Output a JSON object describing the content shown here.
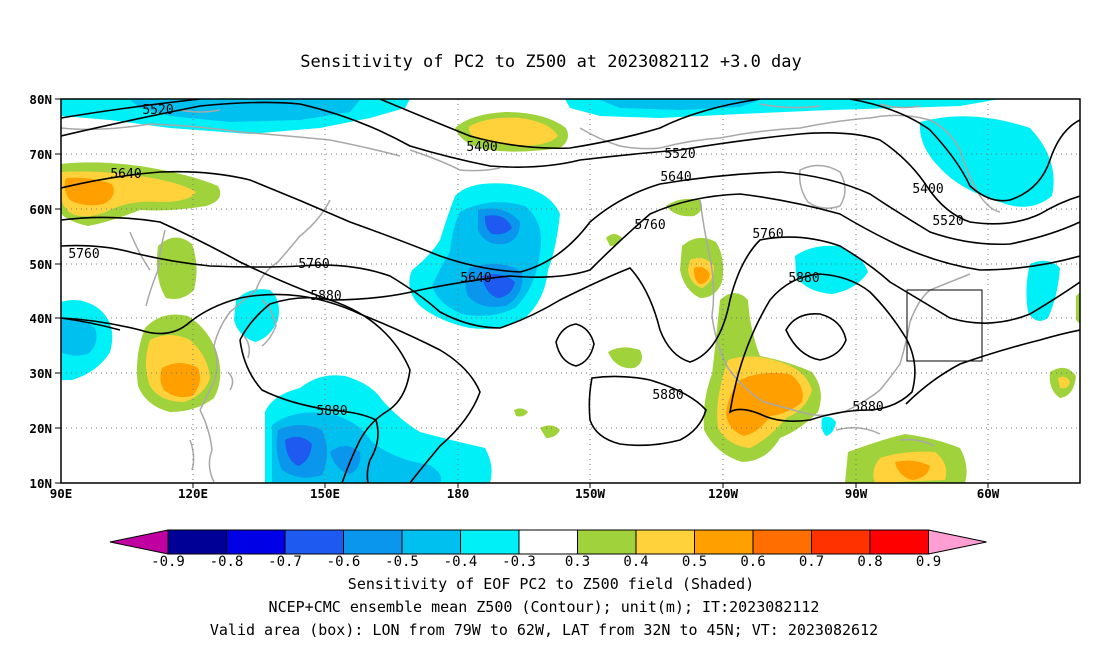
{
  "title": "Sensitivity of PC2 to Z500 at 2023082112 +3.0 day",
  "lat_labels": [
    "80N",
    "70N",
    "60N",
    "50N",
    "40N",
    "30N",
    "20N",
    "10N"
  ],
  "lon_labels": [
    "90E",
    "120E",
    "150E",
    "180",
    "150W",
    "120W",
    "90W",
    "60W"
  ],
  "contour_labels": [
    "5520",
    "5400",
    "5520",
    "5640",
    "5640",
    "5760",
    "5760",
    "5760",
    "5640",
    "5880",
    "5760",
    "5880",
    "5400",
    "5520",
    "5880",
    "5880",
    "5880"
  ],
  "colorbar": {
    "labels": [
      "-0.9",
      "-0.8",
      "-0.7",
      "-0.6",
      "-0.5",
      "-0.4",
      "-0.3",
      "0.3",
      "0.4",
      "0.5",
      "0.6",
      "0.7",
      "0.8",
      "0.9"
    ],
    "colors": [
      "#c000a0",
      "#000096",
      "#0000e6",
      "#1e5af0",
      "#0a96ec",
      "#00c0f0",
      "#00f0f8",
      "#ffffff",
      "#a0d23c",
      "#ffd23c",
      "#ffa000",
      "#ff6e00",
      "#ff3200",
      "#ff0000",
      "#ff9ed2"
    ]
  },
  "shading_colors": {
    "neg3": "#00f0f8",
    "neg4": "#00c0f0",
    "neg5": "#0a96ec",
    "neg6": "#1e5af0",
    "neg7": "#0000e6",
    "pos3": "#a0d23c",
    "pos4": "#ffd23c",
    "pos5": "#ffa000",
    "pos6": "#ff6e00"
  },
  "footer": [
    "Sensitivity of EOF PC2 to Z500 field (Shaded)",
    "NCEP+CMC ensemble mean Z500 (Contour); unit(m); IT:2023082112",
    "Valid area (box): LON from 79W to 62W, LAT from 32N to 45N; VT: 2023082612"
  ]
}
